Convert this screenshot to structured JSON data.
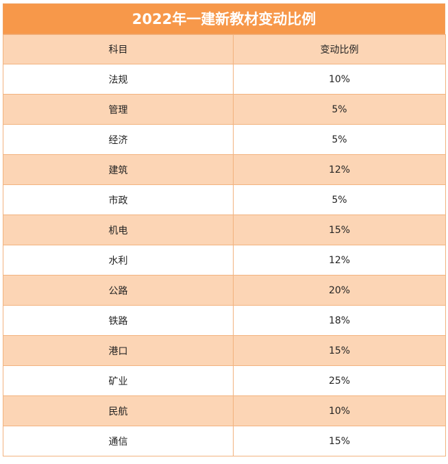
{
  "title": "2022年一建新教材变动比例",
  "headers": {
    "subject": "科目",
    "ratio": "变动比例"
  },
  "rows": [
    {
      "subject": "法规",
      "ratio": "10%"
    },
    {
      "subject": "管理",
      "ratio": "5%"
    },
    {
      "subject": "经济",
      "ratio": "5%"
    },
    {
      "subject": "建筑",
      "ratio": "12%"
    },
    {
      "subject": "市政",
      "ratio": "5%"
    },
    {
      "subject": "机电",
      "ratio": "15%"
    },
    {
      "subject": "水利",
      "ratio": "12%"
    },
    {
      "subject": "公路",
      "ratio": "20%"
    },
    {
      "subject": "铁路",
      "ratio": "18%"
    },
    {
      "subject": "港口",
      "ratio": "15%"
    },
    {
      "subject": "矿业",
      "ratio": "25%"
    },
    {
      "subject": "民航",
      "ratio": "10%"
    },
    {
      "subject": "通信",
      "ratio": "15%"
    }
  ],
  "colors": {
    "header_orange": "#f7984a",
    "row_peach": "#fcd5b5",
    "row_white": "#ffffff"
  }
}
